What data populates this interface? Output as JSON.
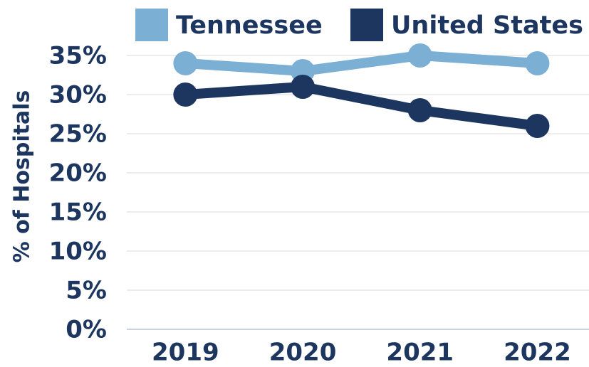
{
  "chart_data": {
    "type": "line",
    "categories": [
      "2019",
      "2020",
      "2021",
      "2022"
    ],
    "series": [
      {
        "name": "Tennessee",
        "color": "#7bafd4",
        "values": [
          34,
          33,
          35,
          34
        ]
      },
      {
        "name": "United States",
        "color": "#1c3660",
        "values": [
          30,
          31,
          28,
          26
        ]
      }
    ],
    "ylabel": "% of Hospitals",
    "ylim": [
      0,
      35
    ],
    "yticks": [
      {
        "value": 0,
        "label": "0%"
      },
      {
        "value": 5,
        "label": "5%"
      },
      {
        "value": 10,
        "label": "10%"
      },
      {
        "value": 15,
        "label": "15%"
      },
      {
        "value": 20,
        "label": "20%"
      },
      {
        "value": 25,
        "label": "25%"
      },
      {
        "value": 30,
        "label": "30%"
      },
      {
        "value": 35,
        "label": "35%"
      }
    ],
    "grid": true,
    "legend": "top"
  }
}
